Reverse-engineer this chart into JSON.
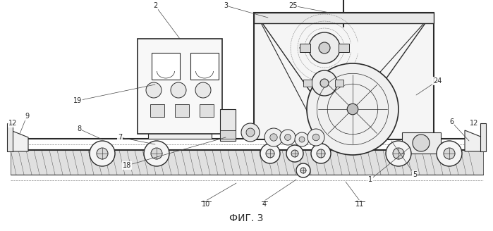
{
  "title": "ФИГ. 3",
  "title_fontsize": 10,
  "bg_color": "#ffffff",
  "line_color": "#2a2a2a",
  "fig_width": 6.99,
  "fig_height": 3.28,
  "dpi": 100
}
